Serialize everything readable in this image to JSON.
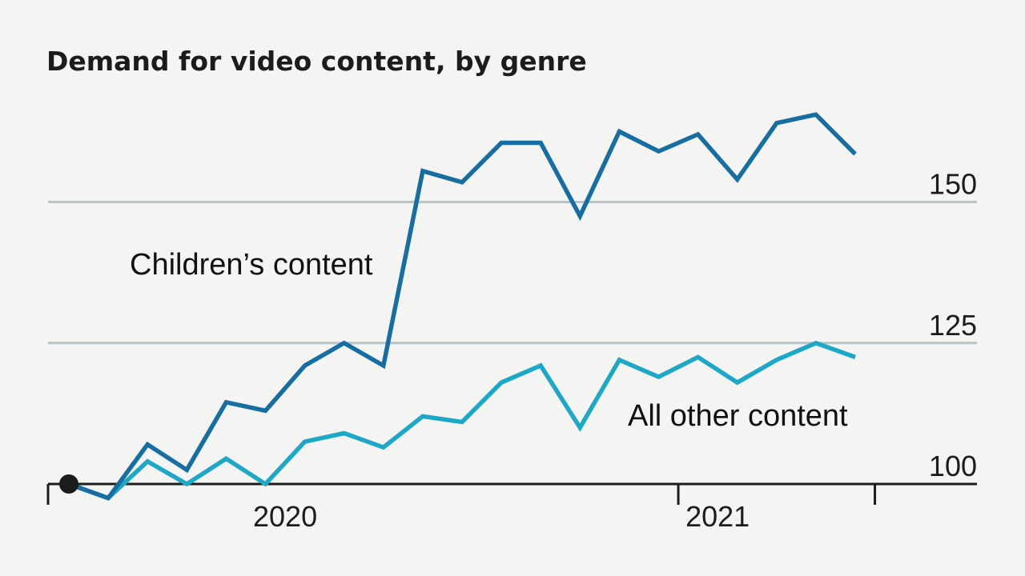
{
  "chart_data": {
    "type": "line",
    "title": "Demand for video content, by genre",
    "xlabel": "",
    "ylabel": "",
    "ylim": [
      100,
      157
    ],
    "yticks": [
      100,
      125,
      150
    ],
    "year_ticks": [
      "2020",
      "2021"
    ],
    "x": [
      "2019-09",
      "2019-10",
      "2019-11",
      "2019-12",
      "2020-01",
      "2020-02",
      "2020-03",
      "2020-04",
      "2020-05",
      "2020-06",
      "2020-07",
      "2020-08",
      "2020-09",
      "2020-10",
      "2020-11",
      "2020-12",
      "2021-01",
      "2021-02",
      "2021-03",
      "2021-04",
      "2021-05"
    ],
    "series": [
      {
        "name": "Children’s content",
        "color": "#176ea3",
        "values": [
          100,
          97.5,
          107,
          102.5,
          114.5,
          113,
          121,
          125,
          121,
          155.5,
          153.5,
          160.5,
          160.5,
          147.5,
          162.5,
          159,
          162,
          154,
          164,
          165.5,
          158.5
        ]
      },
      {
        "name": "All other content",
        "color": "#1ea8c8",
        "values": [
          100,
          97.5,
          104,
          100,
          104.5,
          100,
          107.5,
          109,
          106.5,
          112,
          111,
          118,
          121,
          110,
          122,
          119,
          122.5,
          118,
          122,
          125,
          122.5
        ]
      }
    ],
    "grid": true,
    "legend": "direct-labels"
  }
}
